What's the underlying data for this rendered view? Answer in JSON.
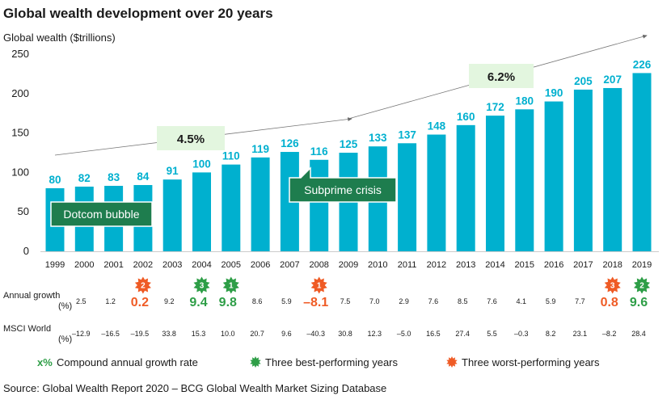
{
  "chart_data": {
    "type": "bar",
    "title": "Global wealth development over 20 years",
    "ylabel": "Global wealth ($trillions)",
    "ylim": [
      0,
      250
    ],
    "yticks": [
      0,
      50,
      100,
      150,
      200,
      250
    ],
    "grid": false,
    "categories": [
      "1999",
      "2000",
      "2001",
      "2002",
      "2003",
      "2004",
      "2005",
      "2006",
      "2007",
      "2008",
      "2009",
      "2010",
      "2011",
      "2012",
      "2013",
      "2014",
      "2015",
      "2016",
      "2017",
      "2018",
      "2019"
    ],
    "values": [
      80,
      82,
      83,
      84,
      91,
      100,
      110,
      119,
      126,
      116,
      125,
      133,
      137,
      148,
      160,
      172,
      180,
      190,
      205,
      207,
      226
    ],
    "bar_color": "#00b0cf",
    "annual_growth": {
      "label": "Annual growth (%)",
      "values": [
        "2.5",
        "1.2",
        "0.2",
        "9.2",
        "9.4",
        "9.8",
        "8.6",
        "5.9",
        "–8.1",
        "7.5",
        "7.0",
        "2.9",
        "7.6",
        "8.5",
        "7.6",
        "4.1",
        "5.9",
        "7.7",
        "0.8",
        "9.6"
      ]
    },
    "msci_world": {
      "label": "MSCI World (%)",
      "values": [
        "–12.9",
        "–16.5",
        "–19.5",
        "33.8",
        "15.3",
        "10.0",
        "20.7",
        "9.6",
        "–40.3",
        "30.8",
        "12.3",
        "–5.0",
        "16.5",
        "27.4",
        "5.5",
        "–0.3",
        "8.2",
        "23.1",
        "–8.2",
        "28.4"
      ]
    },
    "best_years": [
      {
        "rank": "1",
        "year": "2005"
      },
      {
        "rank": "2",
        "year": "2019"
      },
      {
        "rank": "3",
        "year": "2004"
      }
    ],
    "worst_years": [
      {
        "rank": "1",
        "year": "2008"
      },
      {
        "rank": "2",
        "year": "2002"
      },
      {
        "rank": "3",
        "year": "2018"
      }
    ],
    "cagr": [
      {
        "label": "4.5%",
        "from": "1999",
        "to": "2009"
      },
      {
        "label": "6.2%",
        "from": "2009",
        "to": "2019"
      }
    ],
    "annotations": [
      {
        "text": "Dotcom bubble",
        "year": "2001"
      },
      {
        "text": "Subprime crisis",
        "year": "2008"
      }
    ],
    "legend": {
      "cagr_symbol": "x%",
      "cagr": "Compound annual growth rate",
      "best": "Three best-performing years",
      "worst": "Three worst-performing years"
    },
    "source": "Source: Global Wealth Report 2020 – BCG Global Wealth Market Sizing Database"
  },
  "colors": {
    "bar": "#00b0cf",
    "green": "#2e9e47",
    "orange": "#ef5b25",
    "callout": "#1e7d4e",
    "cagr_box": "#e3f6df"
  }
}
